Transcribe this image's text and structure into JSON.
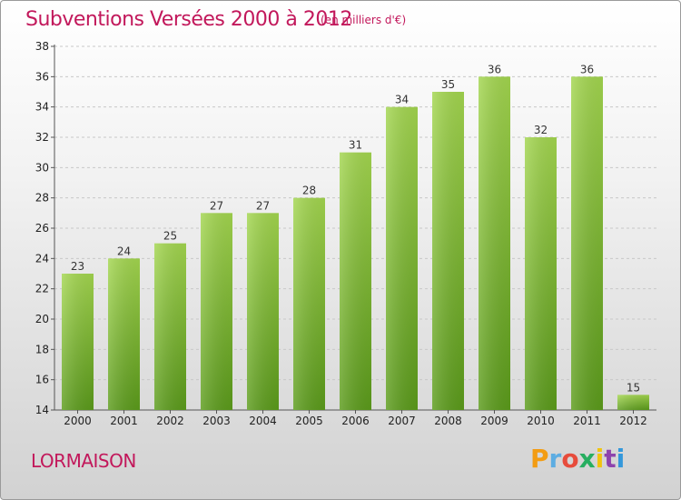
{
  "header": {
    "title": "Subventions Versées 2000 à 2012",
    "subtitle": "(en milliers d'€)"
  },
  "footer": {
    "commune": "LORMAISON",
    "logo_letters": [
      "P",
      "r",
      "o",
      "x",
      "i",
      "t",
      "i"
    ],
    "logo_colors": [
      "#f39c12",
      "#5dade2",
      "#e74c3c",
      "#27ae60",
      "#f1c40f",
      "#8e44ad",
      "#3498db"
    ]
  },
  "chart_data": {
    "type": "bar",
    "title": "Subventions Versées 2000 à 2012",
    "subtitle": "(en milliers d'€)",
    "categories": [
      "2000",
      "2001",
      "2002",
      "2003",
      "2004",
      "2005",
      "2006",
      "2007",
      "2008",
      "2009",
      "2010",
      "2011",
      "2012"
    ],
    "values": [
      23,
      24,
      25,
      27,
      27,
      28,
      31,
      34,
      35,
      36,
      32,
      36,
      15
    ],
    "ylim": [
      14,
      38
    ],
    "yticks": [
      14,
      16,
      18,
      20,
      22,
      24,
      26,
      28,
      30,
      32,
      34,
      36,
      38
    ],
    "grid": true,
    "bar_color_light": "#9fd24a",
    "bar_color_dark": "#5a9a1a"
  }
}
